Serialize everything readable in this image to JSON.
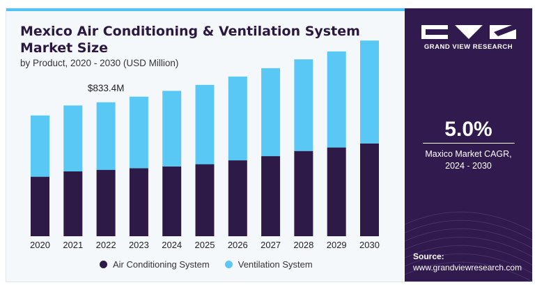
{
  "header": {
    "title": "Mexico Air Conditioning & Ventilation System Market Size",
    "subtitle": "by Product, 2020 - 2030 (USD Million)"
  },
  "chart_data": {
    "type": "bar",
    "stacked": true,
    "categories": [
      "2020",
      "2021",
      "2022",
      "2023",
      "2024",
      "2025",
      "2026",
      "2027",
      "2028",
      "2029",
      "2030"
    ],
    "series": [
      {
        "name": "Air Conditioning System",
        "color": "#2e1a47",
        "values": [
          370,
          403,
          413,
          423,
          434,
          448,
          472,
          498,
          530,
          552,
          577
        ]
      },
      {
        "name": "Ventilation System",
        "color": "#5ac8f5",
        "values": [
          381,
          410,
          420,
          445,
          470,
          493,
          521,
          547,
          570,
          597,
          640
        ]
      }
    ],
    "annotation": {
      "category": "2022",
      "text": "$833.4M"
    },
    "ylim": [
      0,
      1300
    ],
    "grid": false,
    "legend": "bottom"
  },
  "panel": {
    "logo_text": "GRAND VIEW RESEARCH",
    "cagr_value": "5.0%",
    "cagr_label_line1": "Maxico Market CAGR,",
    "cagr_label_line2": "2024 - 2030",
    "source_label": "Source:",
    "source_url": "www.grandviewresearch.com"
  }
}
